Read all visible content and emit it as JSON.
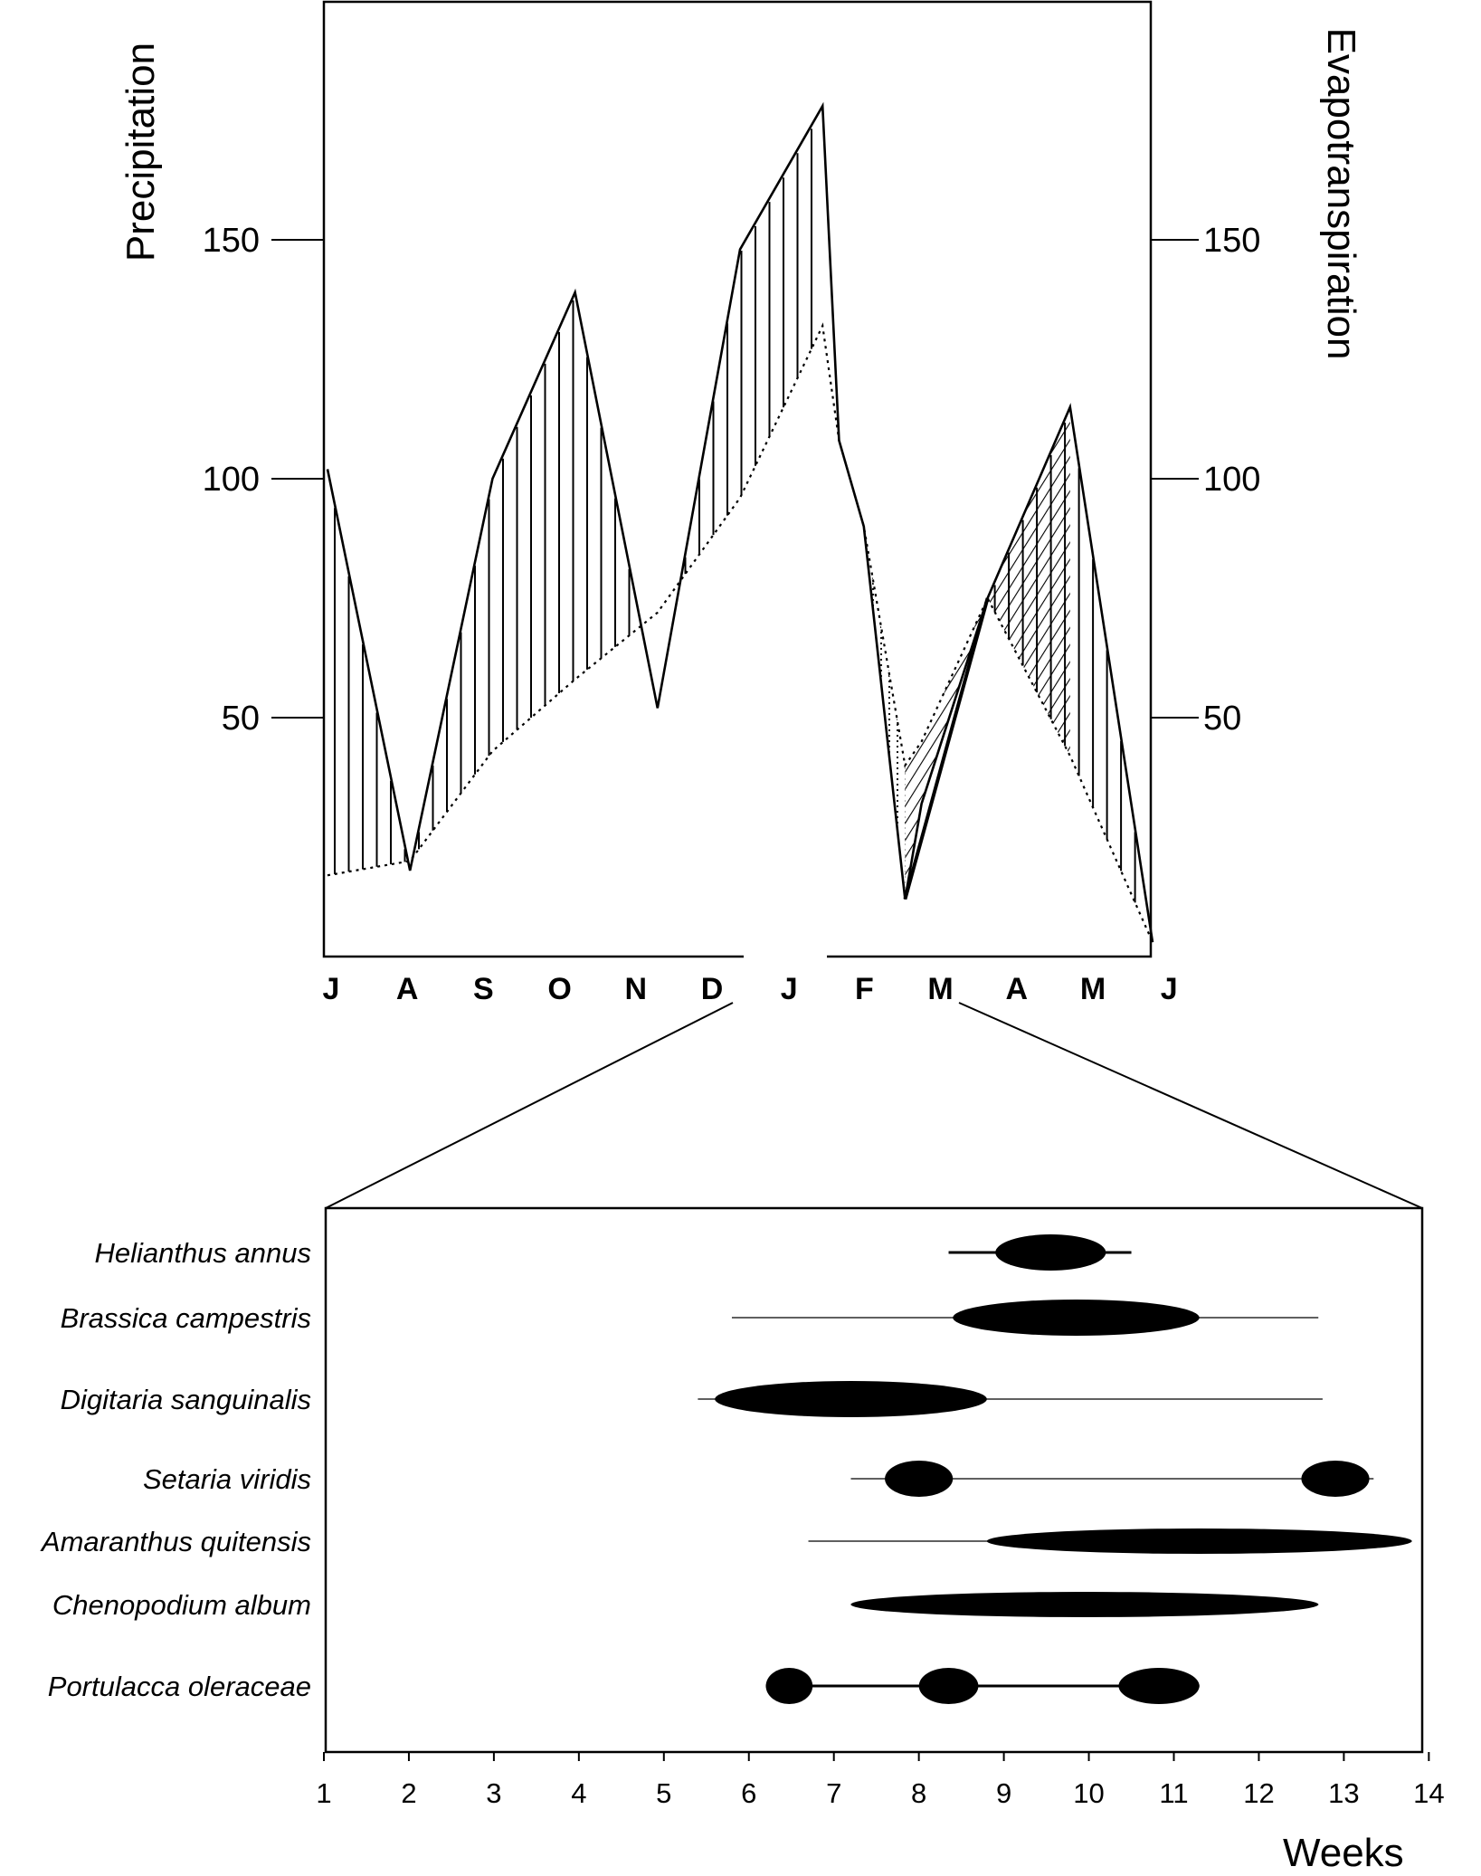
{
  "chart_data": [
    {
      "type": "line",
      "y_left_label": "Precipitation",
      "y_right_label": "Evapotranspiration",
      "y_ticks": [
        "50",
        "100",
        "150"
      ],
      "ylim": [
        0,
        200
      ],
      "x_ticks": [
        "J",
        "A",
        "S",
        "O",
        "N",
        "D",
        "J",
        "F",
        "M",
        "A",
        "M",
        "J"
      ],
      "series": [
        {
          "line": "solid",
          "x": [
            0,
            1,
            2,
            3,
            4,
            5,
            6,
            6.2,
            6.5,
            7,
            7.2,
            8,
            9,
            10
          ],
          "y": [
            102,
            18,
            100,
            139,
            52,
            148,
            178,
            108,
            90,
            12,
            32,
            75,
            115,
            3
          ]
        },
        {
          "line": "dotted",
          "x": [
            0,
            1,
            2,
            3,
            4,
            5,
            6,
            6.2,
            6.5,
            7,
            7.2,
            8,
            9,
            10
          ],
          "y": [
            17,
            20,
            43,
            58,
            72,
            96,
            132,
            108,
            90,
            40,
            45,
            75,
            42,
            3
          ]
        }
      ]
    },
    {
      "type": "scatter",
      "categories": [
        "Helianthus annus",
        "Brassica campestris",
        "Digitaria sanguinalis",
        "Setaria viridis",
        "Amaranthus quitensis",
        "Chenopodium album",
        "Portulacca oleraceae"
      ],
      "x_ticks": [
        "1",
        "2",
        "3",
        "4",
        "5",
        "6",
        "7",
        "8",
        "9",
        "10",
        "11",
        "12",
        "13",
        "14"
      ],
      "xlabel": "Weeks",
      "xlim": [
        1,
        14
      ],
      "ranges": [
        {
          "species": "Helianthus annus",
          "line": [
            8.35,
            10.5
          ],
          "weight": "thick",
          "blobs": [
            {
              "from": 8.9,
              "to": 10.2,
              "level": "large"
            }
          ]
        },
        {
          "species": "Brassica campestris",
          "line": [
            5.8,
            12.7
          ],
          "weight": "thin",
          "blobs": [
            {
              "from": 8.4,
              "to": 11.3,
              "level": "large"
            }
          ]
        },
        {
          "species": "Digitaria sanguinalis",
          "line": [
            5.4,
            12.75
          ],
          "weight": "thin",
          "blobs": [
            {
              "from": 5.6,
              "to": 8.8,
              "level": "large"
            }
          ]
        },
        {
          "species": "Setaria viridis",
          "line": [
            7.2,
            13.35
          ],
          "weight": "thin",
          "blobs": [
            {
              "from": 7.6,
              "to": 8.4,
              "level": "large"
            },
            {
              "from": 12.5,
              "to": 13.3,
              "level": "large"
            }
          ]
        },
        {
          "species": "Amaranthus quitensis",
          "line": [
            6.7,
            13.8
          ],
          "weight": "thin",
          "blobs": [
            {
              "from": 8.8,
              "to": 13.8,
              "level": "medium"
            }
          ]
        },
        {
          "species": "Chenopodium album",
          "line": [
            7.2,
            12.7
          ],
          "weight": "thin",
          "blobs": [
            {
              "from": 7.2,
              "to": 12.7,
              "level": "medium"
            }
          ]
        },
        {
          "species": "Portulacca oleraceae",
          "line": [
            6.2,
            11.3
          ],
          "weight": "thick",
          "blobs": [
            {
              "from": 6.2,
              "to": 6.75,
              "level": "large"
            },
            {
              "from": 8.0,
              "to": 8.7,
              "level": "large"
            },
            {
              "from": 10.35,
              "to": 11.3,
              "level": "large"
            }
          ]
        }
      ]
    }
  ]
}
